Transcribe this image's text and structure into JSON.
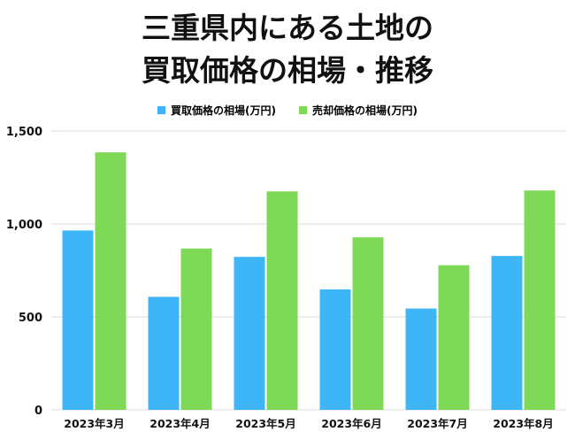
{
  "chart_data": {
    "type": "bar",
    "title_lines": [
      "三重県内にある土地の",
      "買取価格の相場・推移"
    ],
    "categories": [
      "2023年3月",
      "2023年4月",
      "2023年5月",
      "2023年6月",
      "2023年7月",
      "2023年8月"
    ],
    "series": [
      {
        "name": "買取価格の相場(万円)",
        "color": "#3db5f7",
        "values": [
          965,
          608,
          823,
          648,
          545,
          828
        ]
      },
      {
        "name": "売却価格の相場(万円)",
        "color": "#7ed957",
        "values": [
          1385,
          868,
          1175,
          928,
          778,
          1180
        ]
      }
    ],
    "ylim": [
      0,
      1500
    ],
    "yticks": [
      0,
      500,
      1000,
      1500
    ],
    "ytick_labels": [
      "0",
      "500",
      "1,000",
      "1,500"
    ],
    "grid": true,
    "legend_position": "top"
  }
}
